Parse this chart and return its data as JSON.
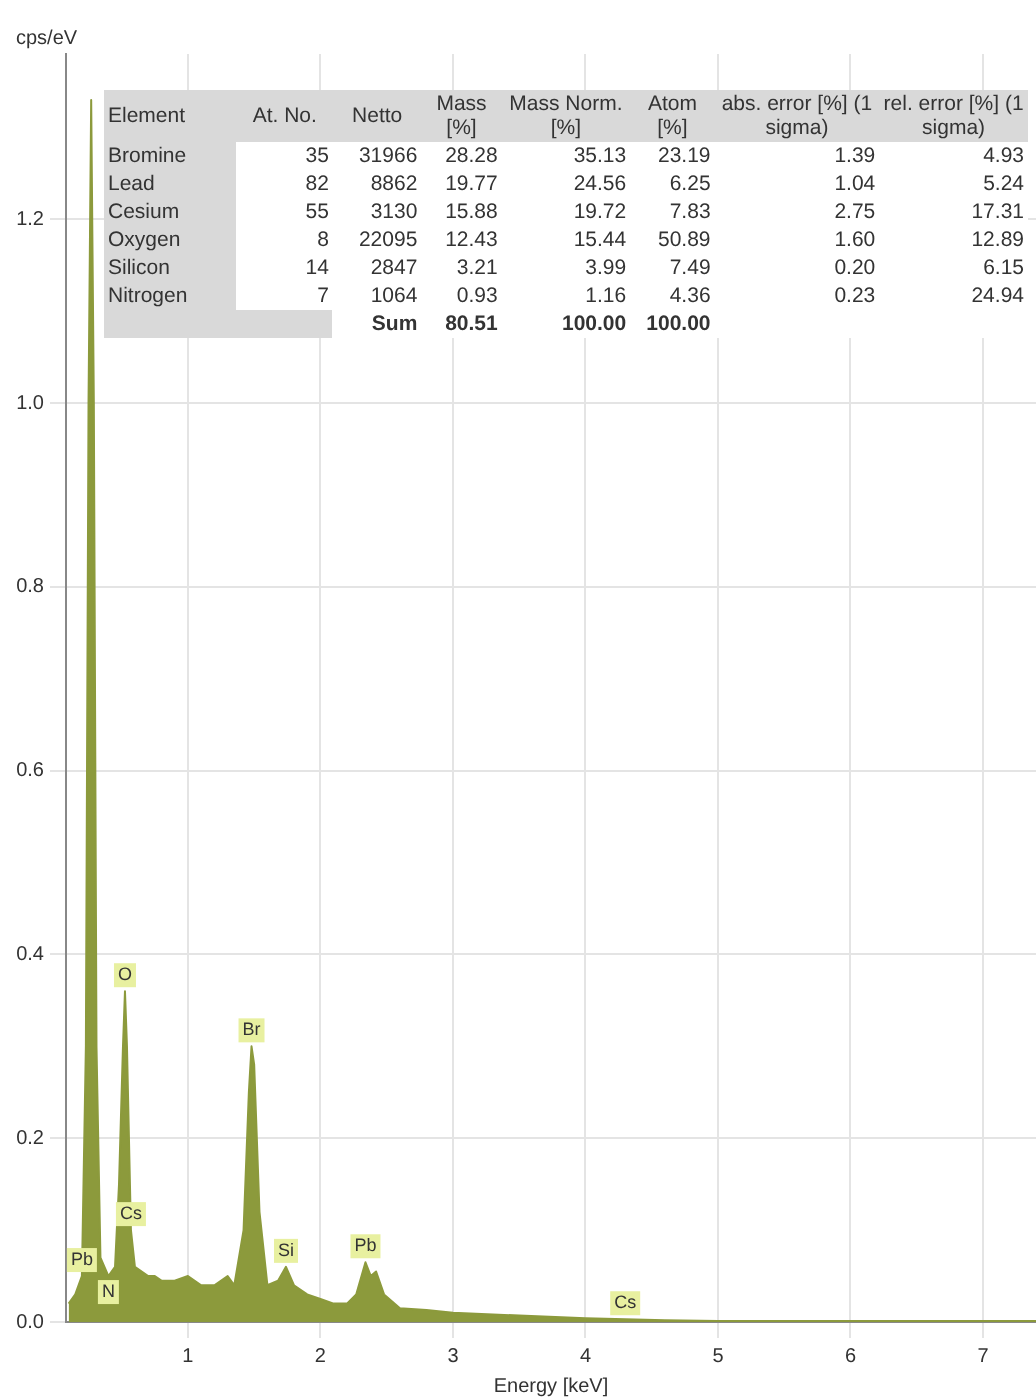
{
  "chart_data": {
    "type": "area",
    "xlabel": "Energy [keV]",
    "ylabel": "cps/eV",
    "color": "#8c9a3c",
    "x": [
      0.1,
      0.15,
      0.2,
      0.23,
      0.25,
      0.27,
      0.29,
      0.31,
      0.34,
      0.4,
      0.45,
      0.48,
      0.51,
      0.525,
      0.54,
      0.57,
      0.6,
      0.7,
      0.75,
      0.8,
      0.9,
      1.0,
      1.1,
      1.2,
      1.3,
      1.35,
      1.42,
      1.46,
      1.48,
      1.5,
      1.54,
      1.6,
      1.68,
      1.74,
      1.8,
      1.9,
      2.0,
      2.1,
      2.2,
      2.27,
      2.34,
      2.38,
      2.42,
      2.48,
      2.6,
      2.8,
      3.0,
      3.5,
      4.0,
      4.3,
      4.6,
      5.0,
      6.0,
      7.4
    ],
    "values": [
      0.02,
      0.03,
      0.05,
      0.3,
      1.0,
      1.33,
      1.0,
      0.3,
      0.07,
      0.05,
      0.06,
      0.15,
      0.3,
      0.36,
      0.3,
      0.1,
      0.06,
      0.05,
      0.05,
      0.045,
      0.045,
      0.05,
      0.04,
      0.04,
      0.05,
      0.04,
      0.1,
      0.25,
      0.3,
      0.28,
      0.12,
      0.04,
      0.045,
      0.06,
      0.04,
      0.03,
      0.025,
      0.02,
      0.02,
      0.03,
      0.065,
      0.05,
      0.055,
      0.03,
      0.015,
      0.013,
      0.01,
      0.007,
      0.004,
      0.003,
      0.002,
      0.001,
      0.001,
      0.001
    ],
    "xlim": [
      0.08,
      7.4
    ],
    "xticks": [
      1,
      2,
      3,
      4,
      5,
      6,
      7
    ],
    "ylim": [
      0,
      1.38
    ],
    "yticks": [
      {
        "value": 0,
        "label": "0.0"
      },
      {
        "value": 0.2,
        "label": "0.2"
      },
      {
        "value": 0.4,
        "label": "0.4"
      },
      {
        "value": 0.6,
        "label": "0.6"
      },
      {
        "value": 0.8,
        "label": "0.8"
      },
      {
        "value": 1,
        "label": "1.0"
      },
      {
        "value": 1.2,
        "label": "1.2"
      }
    ],
    "grid": true,
    "legend": false,
    "annotations": [
      "Element",
      "At. No.",
      "Netto",
      "Mass [%]",
      "Mass Norm. [%]",
      "Atom [%]",
      "abs. error [%] (1 sigma)",
      "rel. error [%] (1 sigma)",
      "Bromine",
      "35",
      "31966",
      "28.28",
      "35.13",
      "23.19",
      "1.39",
      "4.93",
      "Lead",
      "82",
      "8862",
      "19.77",
      "24.56",
      "6.25",
      "1.04",
      "5.24",
      "Cesium",
      "55",
      "3130",
      "15.88",
      "19.72",
      "7.83",
      "2.75",
      "17.31",
      "Oxygen",
      "8",
      "22095",
      "12.43",
      "15.44",
      "50.89",
      "1.60",
      "12.89",
      "Silicon",
      "14",
      "2847",
      "3.21",
      "3.99",
      "7.49",
      "0.20",
      "6.15",
      "Nitrogen",
      "7",
      "1064",
      "0.93",
      "1.16",
      "4.36",
      "0.23",
      "24.94",
      "Sum",
      "80.51",
      "100.00",
      "100.00",
      {
        "text": "O",
        "x": 0.525,
        "y": 0.36
      },
      {
        "text": "Br",
        "x": 1.48,
        "y": 0.3
      },
      {
        "text": "Pb",
        "x": 0.2,
        "y": 0.05
      },
      {
        "text": "N",
        "x": 0.4,
        "y": 0.05
      },
      {
        "text": "Cs",
        "x": 0.57,
        "y": 0.1
      },
      {
        "text": "Si",
        "x": 1.74,
        "y": 0.06
      },
      {
        "text": "Pb",
        "x": 2.34,
        "y": 0.065
      },
      {
        "text": "Cs",
        "x": 4.3,
        "y": 0.003
      }
    ]
  }
}
